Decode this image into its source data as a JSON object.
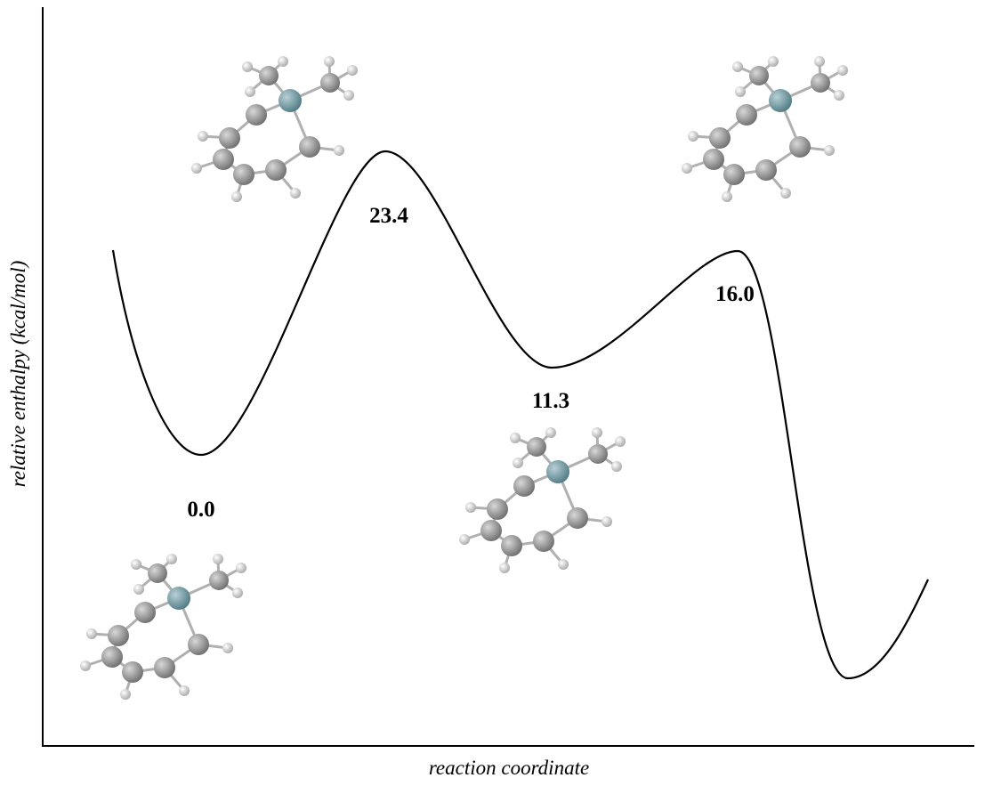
{
  "axes": {
    "x_label": "reaction coordinate",
    "y_label": "relative enthalpy (kcal/mol)"
  },
  "points": [
    {
      "label": "0.0"
    },
    {
      "label": "23.4"
    },
    {
      "label": "11.3"
    },
    {
      "label": "16.0"
    }
  ]
}
